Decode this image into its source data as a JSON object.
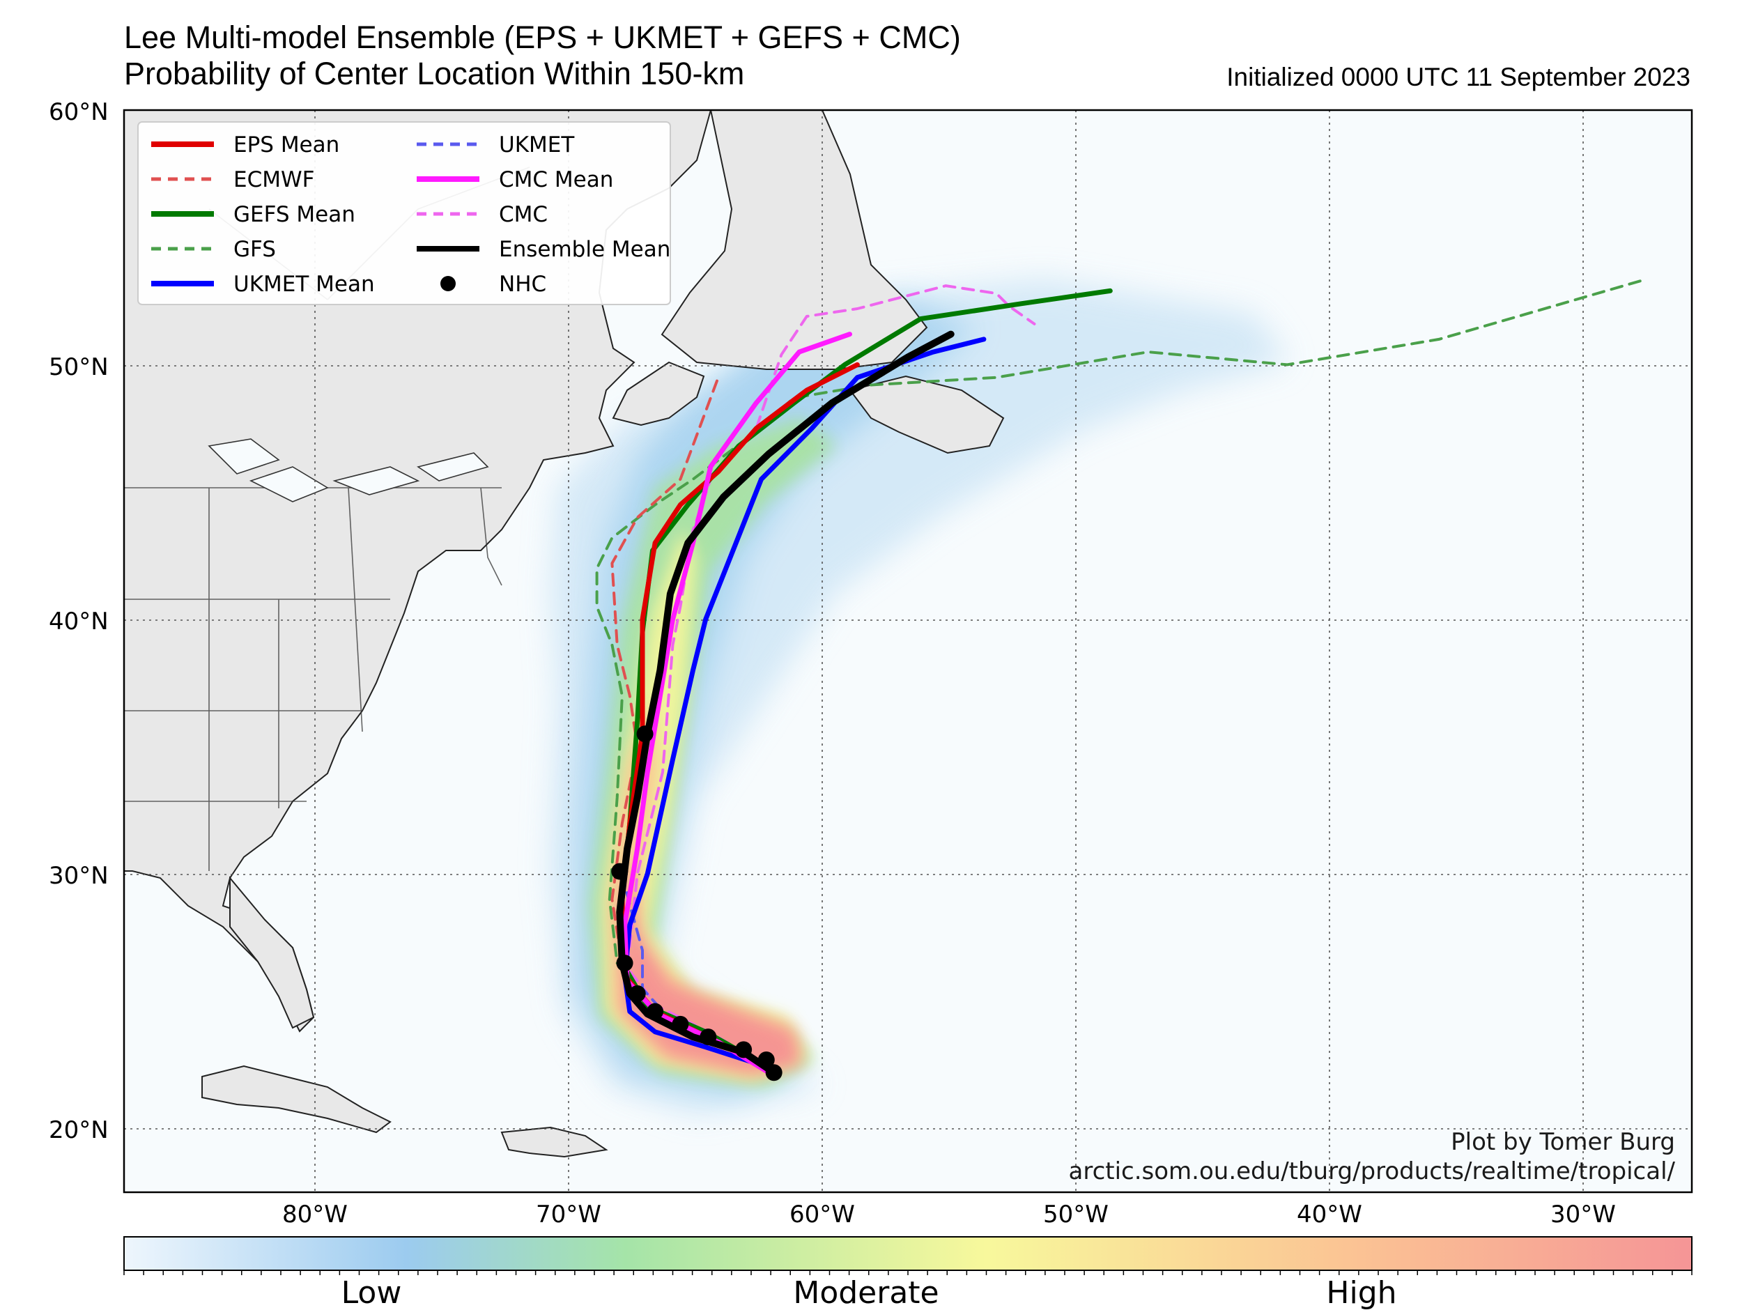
{
  "header": {
    "title_line1": "Lee Multi-model Ensemble (EPS + UKMET + GEFS + CMC)",
    "title_line2": "Probability of Center Location Within 150-km",
    "initialized": "Initialized 0000 UTC 11 September 2023"
  },
  "axes": {
    "lat_labels": [
      "60°N",
      "50°N",
      "40°N",
      "30°N",
      "20°N"
    ],
    "lon_labels": [
      "80°W",
      "70°W",
      "60°W",
      "50°W",
      "40°W",
      "30°W"
    ],
    "lon_range": [
      -87.5,
      -25.5
    ],
    "lat_range": [
      17.5,
      60
    ],
    "grid": "dotted"
  },
  "legend": {
    "placement": "top-left",
    "items": [
      {
        "label": "EPS Mean",
        "color": "#e00000",
        "style": "solid"
      },
      {
        "label": "ECMWF",
        "color": "#e05050",
        "style": "dashed"
      },
      {
        "label": "GEFS Mean",
        "color": "#007a00",
        "style": "solid"
      },
      {
        "label": "GFS",
        "color": "#4aa04a",
        "style": "dashed"
      },
      {
        "label": "UKMET Mean",
        "color": "#0000ff",
        "style": "solid"
      },
      {
        "label": "UKMET",
        "color": "#5a5aee",
        "style": "dashed"
      },
      {
        "label": "CMC Mean",
        "color": "#ff1aff",
        "style": "solid"
      },
      {
        "label": "CMC",
        "color": "#ee66ee",
        "style": "dashed"
      },
      {
        "label": "Ensemble Mean",
        "color": "#000000",
        "style": "solid"
      },
      {
        "label": "NHC",
        "color": "#000000",
        "style": "dot"
      }
    ]
  },
  "tracks": {
    "eps_mean": [
      [
        -62,
        22.3
      ],
      [
        -64,
        23.4
      ],
      [
        -66.5,
        24.6
      ],
      [
        -67.7,
        26
      ],
      [
        -67.8,
        29
      ],
      [
        -67.5,
        32
      ],
      [
        -67,
        35.5
      ],
      [
        -67,
        40
      ],
      [
        -66.5,
        43
      ],
      [
        -65.5,
        44.5
      ],
      [
        -64,
        45.8
      ],
      [
        -62.5,
        47.5
      ],
      [
        -60.5,
        49
      ],
      [
        -58.5,
        50
      ]
    ],
    "ecmwf": [
      [
        -62.2,
        22.4
      ],
      [
        -64.5,
        23.6
      ],
      [
        -66.8,
        24.8
      ],
      [
        -67.8,
        26.5
      ],
      [
        -68.2,
        29
      ],
      [
        -67.8,
        32
      ],
      [
        -67.2,
        35
      ],
      [
        -67.5,
        37
      ],
      [
        -68,
        39
      ],
      [
        -68.2,
        42.2
      ],
      [
        -67.2,
        44
      ],
      [
        -65.5,
        45.5
      ],
      [
        -64,
        49.5
      ]
    ],
    "gefs_mean": [
      [
        -62,
        22.4
      ],
      [
        -64.5,
        23.8
      ],
      [
        -66.8,
        24.8
      ],
      [
        -67.8,
        26.5
      ],
      [
        -67.8,
        29
      ],
      [
        -67.5,
        32
      ],
      [
        -67.2,
        36
      ],
      [
        -67,
        39.5
      ],
      [
        -66.6,
        42.7
      ],
      [
        -65.2,
        44.5
      ],
      [
        -63.2,
        46.8
      ],
      [
        -61,
        48.5
      ],
      [
        -59,
        50
      ],
      [
        -56,
        51.8
      ],
      [
        -52,
        52.4
      ],
      [
        -48.5,
        52.9
      ]
    ],
    "gfs": [
      [
        -62.3,
        22.5
      ],
      [
        -64.8,
        23.8
      ],
      [
        -67,
        25
      ],
      [
        -68,
        26.5
      ],
      [
        -68.3,
        29
      ],
      [
        -68,
        33
      ],
      [
        -67.8,
        37
      ],
      [
        -68.2,
        39
      ],
      [
        -68.8,
        40.5
      ],
      [
        -68.8,
        42
      ],
      [
        -68.2,
        43.2
      ],
      [
        -66.5,
        44.5
      ],
      [
        -65,
        45.5
      ],
      [
        -63,
        47
      ],
      [
        -61,
        48.7
      ],
      [
        -58,
        49.2
      ],
      [
        -53,
        49.5
      ],
      [
        -47,
        50.5
      ],
      [
        -41.5,
        50
      ],
      [
        -35.5,
        51
      ],
      [
        -27.5,
        53.3
      ]
    ],
    "ukmet_mean": [
      [
        -62.3,
        22.5
      ],
      [
        -64.5,
        23.2
      ],
      [
        -66.5,
        23.8
      ],
      [
        -67.5,
        24.6
      ],
      [
        -67.7,
        26
      ],
      [
        -67.5,
        28
      ],
      [
        -66.8,
        30
      ],
      [
        -65.8,
        34.5
      ],
      [
        -65,
        38
      ],
      [
        -64.5,
        40
      ],
      [
        -63.5,
        42.5
      ],
      [
        -62.3,
        45.5
      ],
      [
        -60.3,
        47.5
      ],
      [
        -58.5,
        49.5
      ],
      [
        -55.5,
        50.5
      ],
      [
        -53.5,
        51
      ]
    ],
    "ukmet": [
      [
        -62.4,
        22.7
      ],
      [
        -64.5,
        23.5
      ],
      [
        -66,
        24.4
      ],
      [
        -67,
        25.5
      ],
      [
        -67,
        27
      ],
      [
        -67.5,
        28.8
      ],
      [
        -67.8,
        30
      ]
    ],
    "cmc_mean": [
      [
        -62,
        22.2
      ],
      [
        -64,
        23.4
      ],
      [
        -66.4,
        24.5
      ],
      [
        -67.6,
        25.8
      ],
      [
        -67.7,
        28
      ],
      [
        -67.2,
        31
      ],
      [
        -66.8,
        34
      ],
      [
        -66.3,
        37
      ],
      [
        -65.8,
        40
      ],
      [
        -65,
        43
      ],
      [
        -64.3,
        46
      ],
      [
        -62.5,
        48.5
      ],
      [
        -60.8,
        50.5
      ],
      [
        -58.8,
        51.2
      ]
    ],
    "cmc": [
      [
        -62.3,
        22.6
      ],
      [
        -64.2,
        23.7
      ],
      [
        -66.4,
        24.8
      ],
      [
        -67.6,
        26.3
      ],
      [
        -67.2,
        30
      ],
      [
        -66.2,
        34
      ],
      [
        -65.8,
        39
      ],
      [
        -65.5,
        40.5
      ],
      [
        -65,
        43.5
      ],
      [
        -64.3,
        45.5
      ],
      [
        -62.5,
        47.5
      ],
      [
        -61.5,
        50.4
      ],
      [
        -60.5,
        51.9
      ],
      [
        -58.5,
        52.2
      ],
      [
        -55,
        53.1
      ],
      [
        -53,
        52.8
      ],
      [
        -52.5,
        52.3
      ],
      [
        -51.5,
        51.6
      ]
    ],
    "ensemble_mean": [
      [
        -61.8,
        22.2
      ],
      [
        -63,
        23
      ],
      [
        -65,
        23.6
      ],
      [
        -66.8,
        24.5
      ],
      [
        -67.5,
        25.3
      ],
      [
        -67.8,
        26.5
      ],
      [
        -67.9,
        28.5
      ],
      [
        -67.6,
        31
      ],
      [
        -67.2,
        33
      ],
      [
        -66.8,
        35.5
      ],
      [
        -66.3,
        38
      ],
      [
        -65.9,
        41
      ],
      [
        -65.2,
        43
      ],
      [
        -63.8,
        44.8
      ],
      [
        -62,
        46.5
      ],
      [
        -59.5,
        48.5
      ],
      [
        -56.5,
        50.3
      ],
      [
        -54.8,
        51.2
      ]
    ],
    "nhc": [
      [
        -61.8,
        22.2
      ],
      [
        -62.1,
        22.7
      ],
      [
        -63,
        23.1
      ],
      [
        -64.4,
        23.6
      ],
      [
        -65.5,
        24.1
      ],
      [
        -66.5,
        24.6
      ],
      [
        -67.2,
        25.3
      ],
      [
        -67.7,
        26.5
      ],
      [
        -67.9,
        30.1
      ],
      [
        -66.9,
        35.5
      ]
    ]
  },
  "colorbar": {
    "labels": [
      "Low",
      "Moderate",
      "High"
    ],
    "colors": [
      "#e8f4fc",
      "#94c8ee",
      "#a8e6a0",
      "#f7f79a",
      "#fcc896",
      "#f59595"
    ]
  },
  "credit": {
    "line1": "Plot by Tomer Burg",
    "line2": "arctic.som.ou.edu/tburg/products/realtime/tropical/"
  }
}
